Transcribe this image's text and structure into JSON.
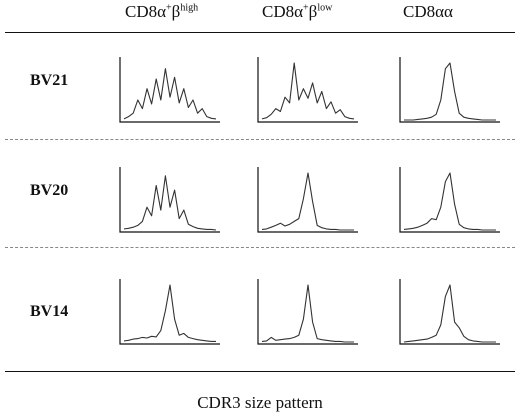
{
  "columns": [
    {
      "base": "CD8α",
      "sup1": "+",
      "mid": "β",
      "sup2": "high"
    },
    {
      "base": "CD8α",
      "sup1": "+",
      "mid": "β",
      "sup2": "low"
    },
    {
      "base": "CD8αα",
      "sup1": "",
      "mid": "",
      "sup2": ""
    }
  ],
  "rows": [
    "BV21",
    "BV20",
    "BV14"
  ],
  "caption": "CDR3 size pattern",
  "chart_data": {
    "type": "line",
    "title": "",
    "xlabel": "CDR3 size pattern",
    "ylabel": "",
    "grid": false,
    "x": [
      0,
      1,
      2,
      3,
      4,
      5,
      6,
      7,
      8,
      9,
      10,
      11,
      12,
      13,
      14,
      15,
      16,
      17,
      18,
      19,
      20
    ],
    "panels": [
      {
        "row": "BV21",
        "column": "CD8α+βhigh",
        "values": [
          0.02,
          0.06,
          0.12,
          0.35,
          0.2,
          0.55,
          0.28,
          0.72,
          0.35,
          0.9,
          0.4,
          0.75,
          0.3,
          0.55,
          0.22,
          0.35,
          0.12,
          0.2,
          0.06,
          0.03,
          0.02
        ]
      },
      {
        "row": "BV21",
        "column": "CD8α+βlow",
        "values": [
          0.02,
          0.04,
          0.1,
          0.2,
          0.15,
          0.4,
          0.3,
          1.0,
          0.35,
          0.55,
          0.38,
          0.65,
          0.3,
          0.5,
          0.2,
          0.32,
          0.12,
          0.18,
          0.06,
          0.03,
          0.02
        ]
      },
      {
        "row": "BV21",
        "column": "CD8αα",
        "values": [
          0,
          0,
          0,
          0.01,
          0.02,
          0.03,
          0.05,
          0.1,
          0.35,
          0.9,
          1.0,
          0.5,
          0.12,
          0.05,
          0.03,
          0.02,
          0.01,
          0,
          0,
          0,
          0
        ]
      },
      {
        "row": "BV20",
        "column": "CD8α+βhigh",
        "values": [
          0.02,
          0.03,
          0.05,
          0.08,
          0.15,
          0.4,
          0.25,
          0.78,
          0.35,
          0.95,
          0.4,
          0.7,
          0.2,
          0.35,
          0.1,
          0.06,
          0.03,
          0.02,
          0.01,
          0.01,
          0
        ]
      },
      {
        "row": "BV20",
        "column": "CD8α+βlow",
        "values": [
          0.01,
          0.02,
          0.05,
          0.08,
          0.12,
          0.07,
          0.1,
          0.15,
          0.2,
          0.55,
          1.0,
          0.5,
          0.08,
          0.04,
          0.02,
          0.01,
          0.01,
          0,
          0,
          0,
          0
        ]
      },
      {
        "row": "BV20",
        "column": "CD8αα",
        "values": [
          0.01,
          0.02,
          0.03,
          0.05,
          0.08,
          0.12,
          0.2,
          0.18,
          0.4,
          0.85,
          1.0,
          0.45,
          0.1,
          0.04,
          0.02,
          0.01,
          0.01,
          0,
          0,
          0,
          0
        ]
      },
      {
        "row": "BV14",
        "column": "CD8α+βhigh",
        "values": [
          0.02,
          0.03,
          0.05,
          0.06,
          0.08,
          0.07,
          0.1,
          0.09,
          0.2,
          0.55,
          1.0,
          0.4,
          0.12,
          0.15,
          0.08,
          0.06,
          0.04,
          0.03,
          0.02,
          0.01,
          0.01
        ]
      },
      {
        "row": "BV14",
        "column": "CD8α+βlow",
        "values": [
          0.01,
          0.02,
          0.08,
          0.03,
          0.04,
          0.05,
          0.06,
          0.08,
          0.12,
          0.4,
          1.0,
          0.35,
          0.06,
          0.04,
          0.03,
          0.02,
          0.01,
          0.01,
          0,
          0,
          0
        ]
      },
      {
        "row": "BV14",
        "column": "CD8αα",
        "values": [
          0,
          0.01,
          0.02,
          0.03,
          0.04,
          0.05,
          0.08,
          0.12,
          0.3,
          0.8,
          1.0,
          0.35,
          0.25,
          0.1,
          0.04,
          0.02,
          0.01,
          0,
          0,
          0,
          0
        ]
      }
    ]
  }
}
